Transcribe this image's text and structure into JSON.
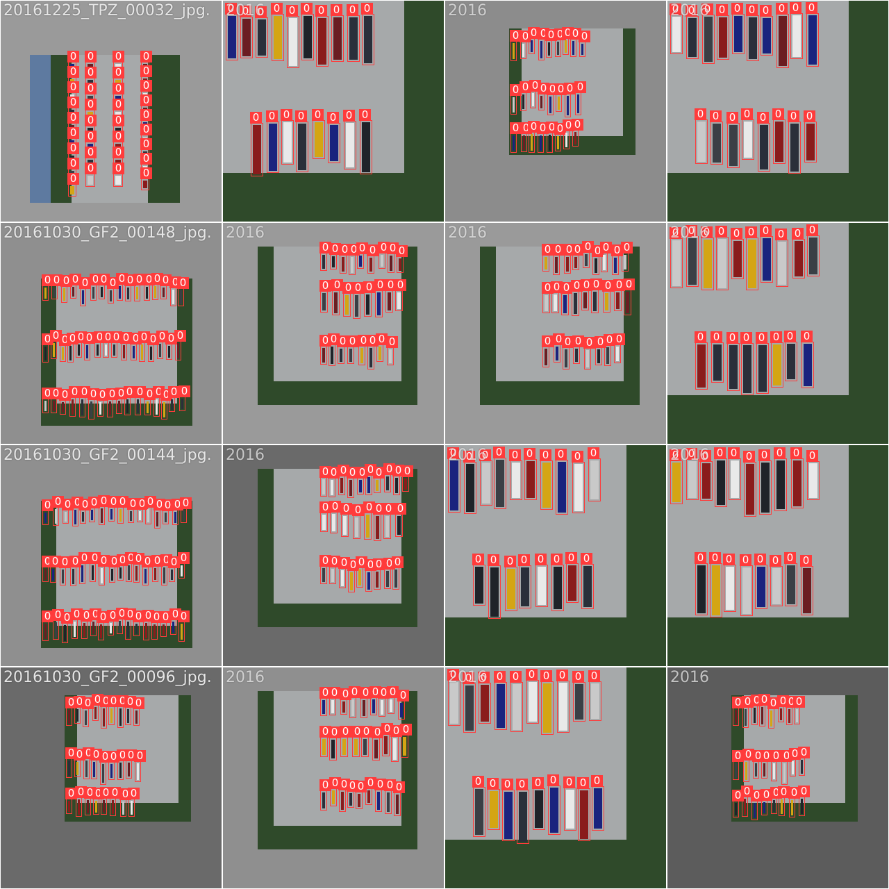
{
  "class_label": "0",
  "colors": {
    "box": "#ff3b3b",
    "label_text": "#ffffff",
    "title_text": "#e6e6e6",
    "pavement": "#a6a9aa",
    "grass": "#2f4a2a",
    "car_palette": [
      "#1f2329",
      "#e9e9e9",
      "#2a2f3a",
      "#6b1d22",
      "#1a237e",
      "#d4a514",
      "#c9c9c9",
      "#3a3f45",
      "#8a1c1c"
    ]
  },
  "tiles": [
    {
      "title": "20161225_TPZ_00032_jpg.",
      "overlap": "",
      "background": "#9a9a9a",
      "scene": "vertical-strip"
    },
    {
      "title": "",
      "overlap": "2016",
      "background": "#a0a0a0",
      "scene": "zoom-lot"
    },
    {
      "title": "",
      "overlap": "2016",
      "background": "#8c8c8c",
      "scene": "small-lot"
    },
    {
      "title": "",
      "overlap": "2016",
      "background": "#a0a0a0",
      "scene": "zoom-lot"
    },
    {
      "title": "20161030_GF2_00148_jpg.",
      "overlap": "",
      "background": "#8f8f8f",
      "scene": "wide-lot"
    },
    {
      "title": "",
      "overlap": "2016",
      "background": "#9a9a9a",
      "scene": "mid-lot"
    },
    {
      "title": "",
      "overlap": "2016",
      "background": "#9a9a9a",
      "scene": "mid-lot"
    },
    {
      "title": "",
      "overlap": "2016",
      "background": "#a0a0a0",
      "scene": "zoom-lot"
    },
    {
      "title": "20161030_GF2_00144_jpg.",
      "overlap": "",
      "background": "#8f8f8f",
      "scene": "wide-lot"
    },
    {
      "title": "",
      "overlap": "2016",
      "background": "#6a6a6a",
      "scene": "mid-lot"
    },
    {
      "title": "",
      "overlap": "2016",
      "background": "#a0a0a0",
      "scene": "zoom-lot"
    },
    {
      "title": "",
      "overlap": "2016",
      "background": "#a0a0a0",
      "scene": "zoom-lot"
    },
    {
      "title": "20161030_GF2_00096_jpg.",
      "overlap": "",
      "background": "#6a6a6a",
      "scene": "small-lot"
    },
    {
      "title": "",
      "overlap": "2016",
      "background": "#8f8f8f",
      "scene": "mid-lot"
    },
    {
      "title": "",
      "overlap": "2016",
      "background": "#a0a0a0",
      "scene": "zoom-lot"
    },
    {
      "title": "",
      "overlap": "2016",
      "background": "#5c5c5c",
      "scene": "small-lot"
    }
  ]
}
